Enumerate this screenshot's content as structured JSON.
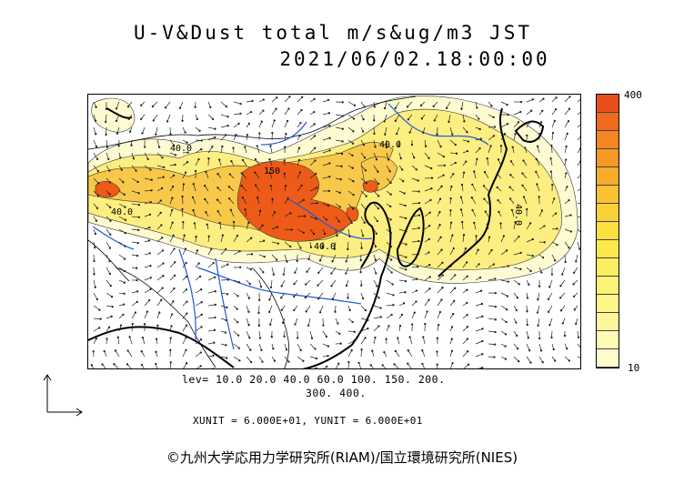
{
  "header": {
    "title": "U-V&Dust total m/s&ug/m3 JST",
    "datetime": "2021/06/02.18:00:00"
  },
  "colorbar": {
    "max_label": "400",
    "min_label": "10",
    "colors": [
      "#e8501a",
      "#ef6a1c",
      "#f2861f",
      "#f49a24",
      "#f6ad2a",
      "#f8c232",
      "#fad238",
      "#fbdf40",
      "#fbe84d",
      "#fcee60",
      "#fcf274",
      "#fdf588",
      "#fdf79c",
      "#fefab4",
      "#fefccc"
    ]
  },
  "legend": {
    "levels_line1": "lev= 10.0 20.0 40.0 60.0 100. 150. 200.",
    "levels_line2": "300. 400.",
    "units": "XUNIT = 6.000E+01, YUNIT = 6.000E+01"
  },
  "map": {
    "contour_labels": [
      "40.0",
      "40.0",
      "150",
      "40.0",
      "40.0",
      "40.0"
    ],
    "colors": {
      "coast": "#000000",
      "rivers": "#1e5adc",
      "vectors": "#222222",
      "high": "#ee5a18",
      "mid": "#f6b233",
      "low": "#fbe46a",
      "faint": "#fefbd2"
    }
  },
  "footer": {
    "copyright": "©九州大学応用力学研究所(RIAM)/国立環境研究所(NIES)"
  }
}
